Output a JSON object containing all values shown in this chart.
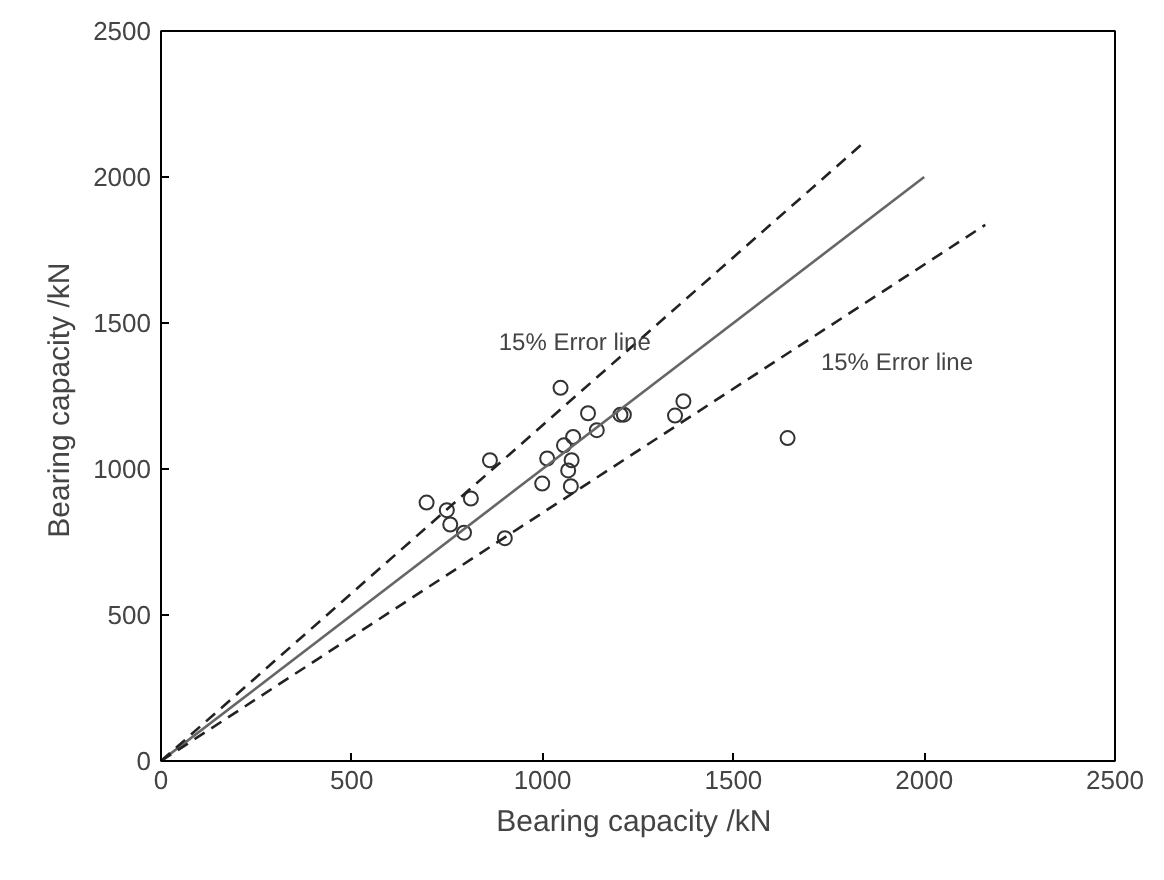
{
  "chart_data": {
    "type": "scatter",
    "xlabel": "Bearing capacity  /kN",
    "ylabel": "Bearing capacity  /kN",
    "xlim": [
      0,
      2500
    ],
    "ylim": [
      0,
      2500
    ],
    "xticks": [
      0,
      500,
      1000,
      1500,
      2000,
      2500
    ],
    "yticks": [
      0,
      500,
      1000,
      1500,
      2000,
      2500
    ],
    "grid": false,
    "series": [
      {
        "color": "#333333",
        "marker": "circle",
        "x": [
          696,
          749,
          758,
          794,
          812,
          862,
          901,
          999,
          1012,
          1047,
          1056,
          1080,
          1067,
          1076,
          1074,
          1119,
          1142,
          1204,
          1213,
          1347,
          1369,
          1642
        ],
        "values": [
          885,
          859,
          810,
          782,
          899,
          1030,
          763,
          950,
          1036,
          1278,
          1081,
          1110,
          995,
          1030,
          941,
          1191,
          1133,
          1186,
          1186,
          1183,
          1232,
          1106
        ]
      },
      {
        "type": "line",
        "color": "#666666",
        "line_style": "solid",
        "marker": "none",
        "x": [
          0,
          2000
        ],
        "values": [
          0,
          2000
        ]
      },
      {
        "type": "line",
        "color": "#222222",
        "line_style": "dashed",
        "marker": "none",
        "x": [
          0,
          1840
        ],
        "values": [
          0,
          2116
        ]
      },
      {
        "type": "line",
        "color": "#222222",
        "line_style": "dashed",
        "marker": "none",
        "x": [
          0,
          2160
        ],
        "values": [
          0,
          1836
        ]
      }
    ],
    "annotations": [
      {
        "text": "15% Error line",
        "x": 1320,
        "y": 1518
      },
      {
        "text": "15% Error line",
        "x": 1850,
        "y": 1573
      }
    ]
  }
}
